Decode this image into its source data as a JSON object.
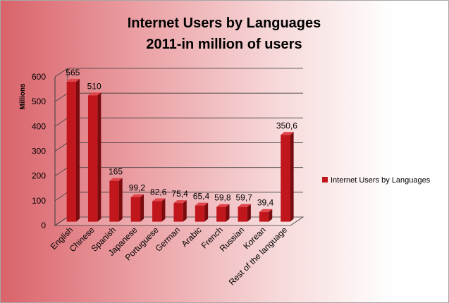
{
  "chart_data": {
    "type": "bar",
    "title_lines": [
      "Internet Users by Languages",
      "2011-in million of users"
    ],
    "ylabel": "Millions",
    "xlabel": "",
    "categories": [
      "English",
      "Chinese",
      "Spanish",
      "Japanese",
      "Portuguese",
      "German",
      "Arabic",
      "French",
      "Russian",
      "Korean",
      "Rest of the language"
    ],
    "series": [
      {
        "name": "Internet Users by Languages",
        "values": [
          565,
          510,
          165,
          99.2,
          82.6,
          75.4,
          65.4,
          59.8,
          59.7,
          39.4,
          350.6
        ],
        "labels": [
          "565",
          "510",
          "165",
          "99,2",
          "82,6",
          "75,4",
          "65,4",
          "59,8",
          "59,7",
          "39,4",
          "350,6"
        ]
      }
    ],
    "ylim": [
      0,
      600
    ],
    "yticks": [
      0,
      100,
      200,
      300,
      400,
      500,
      600
    ],
    "grid": true,
    "legend_position": "right",
    "bar_color": "#c0161c"
  }
}
